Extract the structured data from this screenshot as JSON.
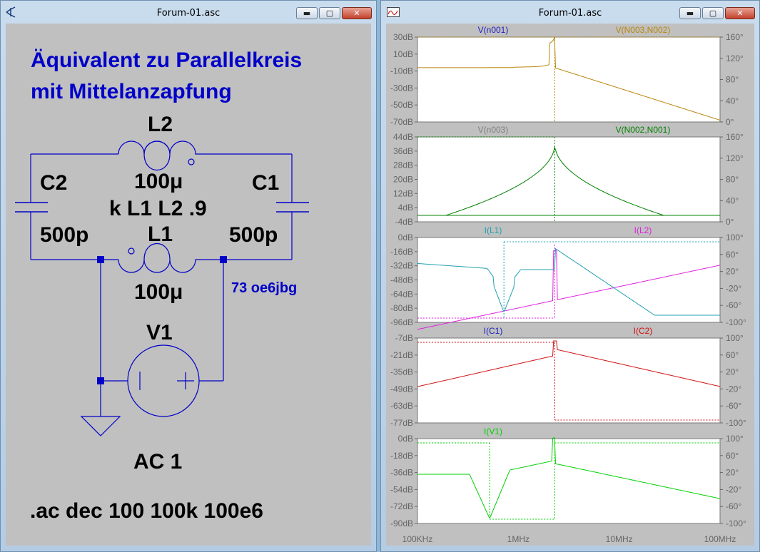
{
  "left_window": {
    "title": "Forum-01.asc",
    "buttons": {
      "minimize": "▬",
      "maximize": "▢",
      "close": "✕"
    },
    "heading_line1": "Äquivalent zu Parallelkreis",
    "heading_line2": "mit Mittelanzapfung",
    "components": {
      "L2_name": "L2",
      "L2_value": "100μ",
      "L1_name": "L1",
      "L1_value": "100μ",
      "C1_name": "C1",
      "C1_value": "500p",
      "C2_name": "C2",
      "C2_value": "500p",
      "coupling": "k L1 L2 .9",
      "V1_name": "V1",
      "V1_value": "AC 1"
    },
    "annotation": "73 oe6jbg",
    "directive": ".ac dec 100 100k 100e6",
    "colors": {
      "wire": "#0000c8",
      "text": "#000000",
      "heading": "#0000c8"
    }
  },
  "right_window": {
    "title": "Forum-01.asc",
    "buttons": {
      "minimize": "▬",
      "maximize": "▢",
      "close": "✕"
    },
    "x_ticks": [
      "100KHz",
      "1MHz",
      "10MHz",
      "100MHz"
    ],
    "panes": [
      {
        "trace1": "V(n001)",
        "trace1_color": "#2020c0",
        "trace2": "V(N003,N002)",
        "trace2_color": "#b8860b",
        "left_ticks": [
          "30dB",
          "10dB",
          "-10dB",
          "-30dB",
          "-50dB",
          "-70dB"
        ],
        "right_ticks": [
          "160°",
          "120°",
          "80°",
          "40°",
          "0°"
        ]
      },
      {
        "trace1": "V(n003)",
        "trace1_color": "#808080",
        "trace2": "V(N002,N001)",
        "trace2_color": "#008000",
        "left_ticks": [
          "44dB",
          "36dB",
          "28dB",
          "20dB",
          "12dB",
          "4dB",
          "-4dB"
        ],
        "right_ticks": [
          "160°",
          "120°",
          "80°",
          "40°",
          "0°"
        ]
      },
      {
        "trace1": "I(L1)",
        "trace1_color": "#20a0b0",
        "trace2": "I(L2)",
        "trace2_color": "#e020e0",
        "left_ticks": [
          "0dB",
          "-16dB",
          "-32dB",
          "-48dB",
          "-64dB",
          "-80dB",
          "-96dB"
        ],
        "right_ticks": [
          "100°",
          "60°",
          "20°",
          "-20°",
          "-60°",
          "-100°"
        ]
      },
      {
        "trace1": "I(C1)",
        "trace1_color": "#2020c0",
        "trace2": "I(C2)",
        "trace2_color": "#d01010",
        "left_ticks": [
          "-7dB",
          "-21dB",
          "-35dB",
          "-49dB",
          "-63dB",
          "-77dB"
        ],
        "right_ticks": [
          "100°",
          "60°",
          "20°",
          "-20°",
          "-60°",
          "-100°"
        ]
      },
      {
        "trace1": "I(V1)",
        "trace1_color": "#00d000",
        "trace2": "",
        "trace2_color": "#00d000",
        "left_ticks": [
          "0dB",
          "-18dB",
          "-36dB",
          "-54dB",
          "-72dB",
          "-90dB"
        ],
        "right_ticks": [
          "100°",
          "60°",
          "20°",
          "-20°",
          "-60°",
          "-100°"
        ]
      }
    ]
  }
}
